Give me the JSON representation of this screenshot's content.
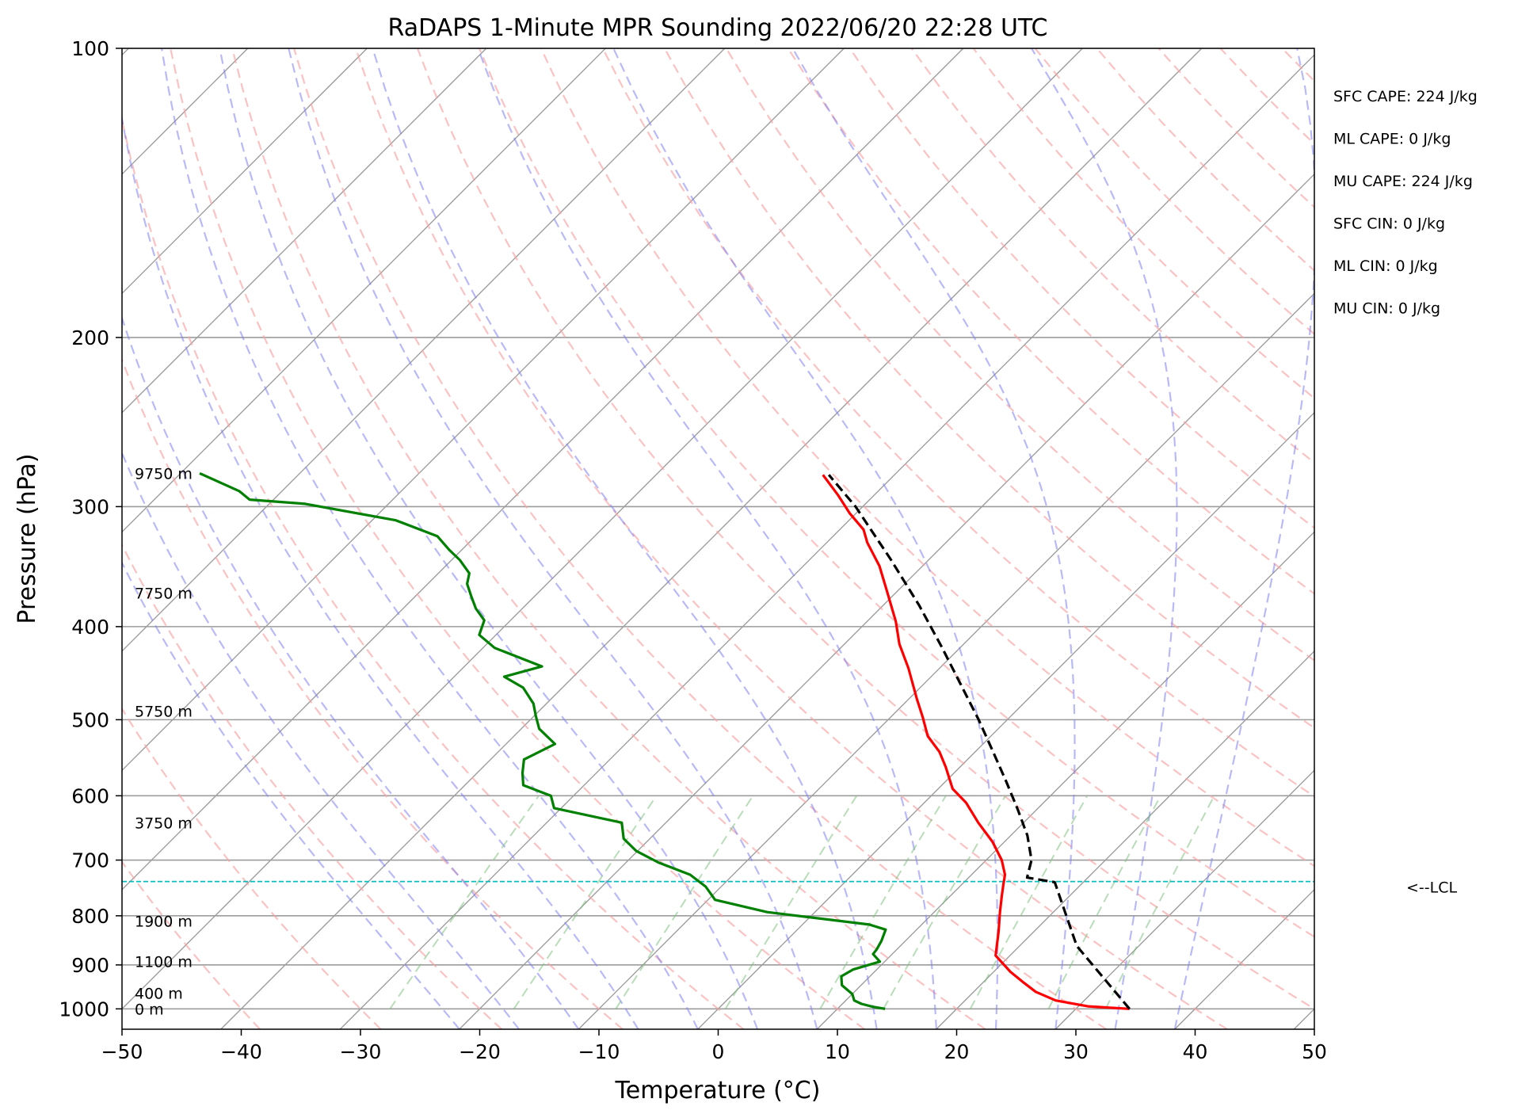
{
  "chart_data": {
    "type": "line",
    "title": "RaDAPS 1-Minute MPR Sounding 2022/06/20 22:28 UTC",
    "xlabel": "Temperature (°C)",
    "ylabel": "Pressure (hPa)",
    "x_ticks": [
      "−50",
      "−40",
      "−30",
      "−20",
      "−10",
      "0",
      "10",
      "20",
      "30",
      "40",
      "50"
    ],
    "y_ticks": [
      "100",
      "200",
      "300",
      "400",
      "500",
      "600",
      "700",
      "800",
      "900",
      "1000"
    ],
    "xlim": [
      -50,
      50
    ],
    "ylim": [
      1050,
      100
    ],
    "y_scale": "log",
    "skew": "skew-T (isotherms tilted)",
    "grid": true,
    "series": [
      {
        "role": "temperature",
        "color": "#ff0000",
        "points": [
          [
            34.5,
            1000
          ],
          [
            30.8,
            994
          ],
          [
            27.6,
            980
          ],
          [
            25.2,
            960
          ],
          [
            23.5,
            940
          ],
          [
            21.4,
            915
          ],
          [
            18.8,
            880
          ],
          [
            17.0,
            830
          ],
          [
            15.8,
            800
          ],
          [
            15.4,
            790
          ],
          [
            14.4,
            765
          ],
          [
            13.6,
            745
          ],
          [
            12.8,
            725
          ],
          [
            11.3,
            700
          ],
          [
            9.0,
            670
          ],
          [
            6.2,
            640
          ],
          [
            3.5,
            610
          ],
          [
            1.2,
            590
          ],
          [
            -1.2,
            560
          ],
          [
            -3.0,
            540
          ],
          [
            -5.3,
            520
          ],
          [
            -7.3,
            497
          ],
          [
            -9.3,
            476
          ],
          [
            -12.6,
            442
          ],
          [
            -15.4,
            417
          ],
          [
            -17.6,
            395
          ],
          [
            -20.8,
            368
          ],
          [
            -23.6,
            346
          ],
          [
            -26.6,
            327
          ],
          [
            -28.0,
            317
          ],
          [
            -30.5,
            305
          ],
          [
            -33.0,
            292
          ],
          [
            -36.0,
            278
          ]
        ]
      },
      {
        "role": "dewpoint",
        "color": "#008000",
        "points": [
          [
            14.0,
            1000
          ],
          [
            12.8,
            995
          ],
          [
            11.6,
            988
          ],
          [
            10.7,
            980
          ],
          [
            10.0,
            965
          ],
          [
            8.4,
            945
          ],
          [
            7.6,
            925
          ],
          [
            8.0,
            910
          ],
          [
            9.6,
            893
          ],
          [
            8.4,
            877
          ],
          [
            8.3,
            867
          ],
          [
            8.0,
            850
          ],
          [
            7.4,
            827
          ],
          [
            5.6,
            817
          ],
          [
            -4.0,
            793
          ],
          [
            -9.4,
            770
          ],
          [
            -11.3,
            746
          ],
          [
            -13.6,
            725
          ],
          [
            -17.3,
            704
          ],
          [
            -20.1,
            685
          ],
          [
            -22.2,
            665
          ],
          [
            -23.7,
            640
          ],
          [
            -30.6,
            618
          ],
          [
            -31.9,
            600
          ],
          [
            -35.1,
            585
          ],
          [
            -36.2,
            568
          ],
          [
            -37.2,
            550
          ],
          [
            -35.9,
            530
          ],
          [
            -38.5,
            511
          ],
          [
            -39.9,
            495
          ],
          [
            -41.1,
            481
          ],
          [
            -43.3,
            463
          ],
          [
            -45.8,
            451
          ],
          [
            -43.5,
            440
          ],
          [
            -49.0,
            421
          ],
          [
            -51.4,
            408
          ],
          [
            -52.2,
            394
          ],
          [
            -53.9,
            383
          ],
          [
            -55.3,
            372
          ],
          [
            -56.7,
            361
          ],
          [
            -57.4,
            352
          ],
          [
            -59.3,
            341
          ],
          [
            -61.0,
            333
          ],
          [
            -63.2,
            322
          ],
          [
            -68.0,
            310
          ],
          [
            -77.0,
            298
          ],
          [
            -82.0,
            295
          ],
          [
            -83.6,
            289
          ],
          [
            -88.4,
            277
          ]
        ]
      },
      {
        "role": "parcel",
        "color": "#000000",
        "style": "dashed",
        "points": [
          [
            34.5,
            1000
          ],
          [
            24.8,
            860
          ],
          [
            17.6,
            738
          ],
          [
            14.9,
            730
          ],
          [
            13.8,
            700
          ],
          [
            11.4,
            660
          ],
          [
            8.4,
            620
          ],
          [
            5.1,
            580
          ],
          [
            1.5,
            540
          ],
          [
            -2.4,
            500
          ],
          [
            -6.8,
            460
          ],
          [
            -11.6,
            420
          ],
          [
            -17.0,
            380
          ],
          [
            -23.3,
            340
          ],
          [
            -30.6,
            300
          ],
          [
            -35.5,
            278
          ]
        ]
      }
    ],
    "lcl_pressure": 737,
    "lcl_label": "<--LCL",
    "lcl_color": "#00bfbf",
    "height_labels": [
      {
        "text": "9750 m",
        "p": 277
      },
      {
        "text": "7750 m",
        "p": 369
      },
      {
        "text": "5750 m",
        "p": 490
      },
      {
        "text": "3750 m",
        "p": 640
      },
      {
        "text": "1900 m",
        "p": 810
      },
      {
        "text": "1100 m",
        "p": 893
      },
      {
        "text": "400 m",
        "p": 963
      },
      {
        "text": "0 m",
        "p": 1000
      }
    ],
    "stats": [
      "SFC CAPE: 224 J/kg",
      "ML CAPE: 0 J/kg",
      "MU CAPE: 224 J/kg",
      "SFC CIN: 0 J/kg",
      "ML CIN: 0 J/kg",
      "MU CIN: 0 J/kg"
    ],
    "colors": {
      "dry_adiabat": "#f7a1a1",
      "moist_adiabat": "#8080f0",
      "mixing_ratio": "#80c080",
      "isotherm": "#9c9c9c"
    }
  }
}
